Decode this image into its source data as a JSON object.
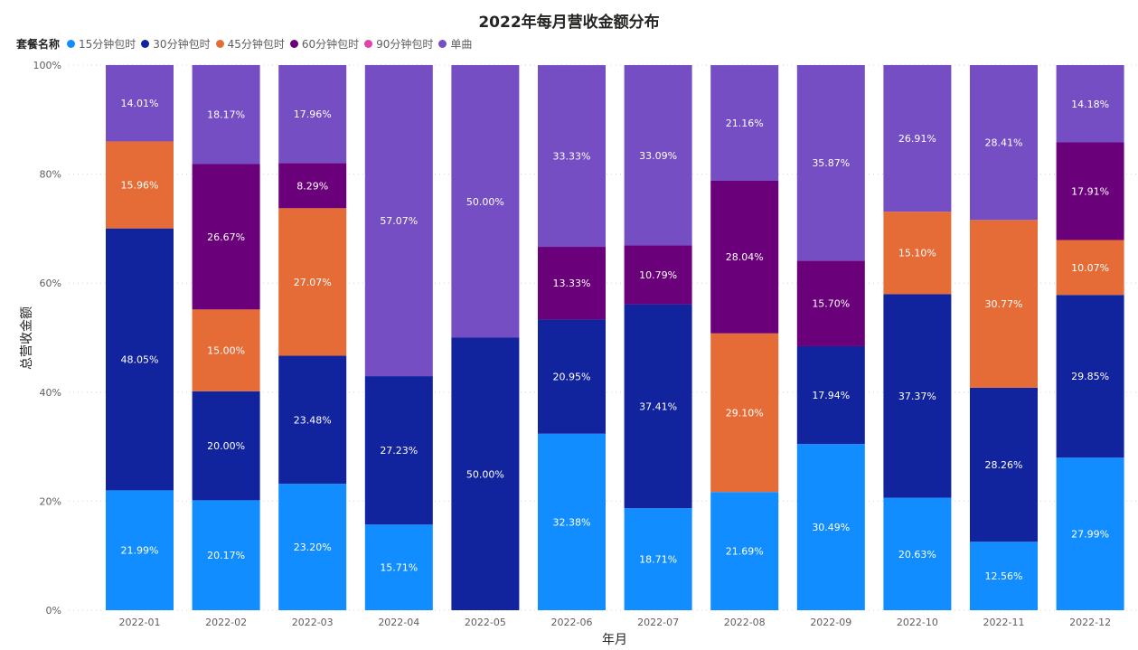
{
  "title": "2022年每月营收金额分布",
  "legend": {
    "title": "套餐名称",
    "items": [
      {
        "label": "15分钟包时",
        "color": "#118DFF"
      },
      {
        "label": "30分钟包时",
        "color": "#12239E"
      },
      {
        "label": "45分钟包时",
        "color": "#E66C37"
      },
      {
        "label": "60分钟包时",
        "color": "#6B007B"
      },
      {
        "label": "90分钟包时",
        "color": "#E044A7"
      },
      {
        "label": "单曲",
        "color": "#744EC2"
      }
    ]
  },
  "chart_data": {
    "type": "bar",
    "stacking": "percent",
    "title": "2022年每月营收金额分布",
    "xlabel": "年月",
    "ylabel": "总营收金额",
    "ylim": [
      0,
      100
    ],
    "yticks": [
      "0%",
      "20%",
      "40%",
      "60%",
      "80%",
      "100%"
    ],
    "grid": true,
    "legend_position": "top-left",
    "categories": [
      "2022-01",
      "2022-02",
      "2022-03",
      "2022-04",
      "2022-05",
      "2022-06",
      "2022-07",
      "2022-08",
      "2022-09",
      "2022-10",
      "2022-11",
      "2022-12"
    ],
    "series": [
      {
        "name": "15分钟包时",
        "color": "#118DFF",
        "values": [
          21.99,
          20.17,
          23.2,
          15.71,
          0,
          32.38,
          18.71,
          21.69,
          30.49,
          20.63,
          12.56,
          27.99
        ]
      },
      {
        "name": "30分钟包时",
        "color": "#12239E",
        "values": [
          48.05,
          20.0,
          23.48,
          27.23,
          50.0,
          20.95,
          37.41,
          0,
          17.94,
          37.37,
          28.26,
          29.85
        ]
      },
      {
        "name": "45分钟包时",
        "color": "#E66C37",
        "values": [
          15.96,
          15.0,
          27.07,
          0,
          0,
          0,
          0,
          29.1,
          0,
          15.1,
          30.77,
          10.07
        ]
      },
      {
        "name": "60分钟包时",
        "color": "#6B007B",
        "values": [
          0,
          26.67,
          8.29,
          0,
          0,
          13.33,
          10.79,
          28.04,
          15.7,
          0,
          0,
          17.91
        ]
      },
      {
        "name": "90分钟包时",
        "color": "#E044A7",
        "values": [
          0,
          0,
          0,
          0,
          0,
          0,
          0,
          0,
          0,
          0,
          0,
          0
        ]
      },
      {
        "name": "单曲",
        "color": "#744EC2",
        "values": [
          14.01,
          18.17,
          17.96,
          57.07,
          50.0,
          33.33,
          33.09,
          21.16,
          35.87,
          26.91,
          28.41,
          14.18
        ]
      }
    ],
    "data_labels": [
      [
        "21.99%",
        "20.17%",
        "23.20%",
        "15.71%",
        "",
        "32.38%",
        "18.71%",
        "21.69%",
        "30.49%",
        "20.63%",
        "12.56%",
        "27.99%"
      ],
      [
        "48.05%",
        "20.00%",
        "23.48%",
        "27.23%",
        "50.00%",
        "20.95%",
        "37.41%",
        "",
        "17.94%",
        "37.37%",
        "28.26%",
        "29.85%"
      ],
      [
        "15.96%",
        "15.00%",
        "27.07%",
        "",
        "",
        "",
        "",
        "29.10%",
        "",
        "15.10%",
        "30.77%",
        "10.07%"
      ],
      [
        "",
        "26.67%",
        "8.29%",
        "",
        "",
        "13.33%",
        "10.79%",
        "28.04%",
        "15.70%",
        "",
        "",
        "17.91%"
      ],
      [
        "",
        "",
        "",
        "",
        "",
        "",
        "",
        "",
        "",
        "",
        "",
        ""
      ],
      [
        "14.01%",
        "18.17%",
        "17.96%",
        "57.07%",
        "50.00%",
        "33.33%",
        "33.09%",
        "21.16%",
        "35.87%",
        "26.91%",
        "28.41%",
        "14.18%"
      ]
    ]
  }
}
